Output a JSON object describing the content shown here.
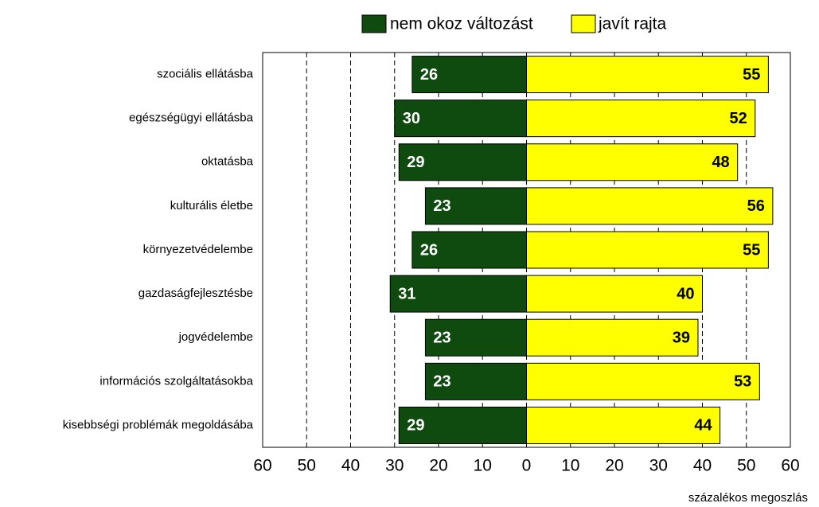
{
  "chart_data": {
    "type": "diverging_bar",
    "orientation": "horizontal",
    "categories": [
      "szociális ellátásba",
      "egészségügyi ellátásba",
      "oktatásba",
      "kulturális életbe",
      "környezetvédelembe",
      "gazdaságfejlesztésbe",
      "jogvédelembe",
      "információs szolgáltatásokba",
      "kisebbségi problémák megoldásába"
    ],
    "series": [
      {
        "name": "nem okoz változást",
        "color": "#0f4a0f",
        "values": [
          -26,
          -30,
          -29,
          -23,
          -26,
          -31,
          -23,
          -23,
          -29
        ],
        "value_labels": [
          "26",
          "30",
          "29",
          "23",
          "26",
          "31",
          "23",
          "23",
          "29"
        ],
        "label_color": "#ffffff"
      },
      {
        "name": "javít rajta",
        "color": "#ffff00",
        "values": [
          55,
          52,
          48,
          56,
          55,
          40,
          39,
          53,
          44
        ],
        "label_color": "#000000"
      }
    ],
    "xlim": [
      -60,
      60
    ],
    "xticks": [
      {
        "value": -60,
        "label": "60"
      },
      {
        "value": -50,
        "label": "50"
      },
      {
        "value": -40,
        "label": "40"
      },
      {
        "value": -30,
        "label": "30"
      },
      {
        "value": -20,
        "label": "20"
      },
      {
        "value": -10,
        "label": "10"
      },
      0,
      10,
      20,
      30,
      40,
      50,
      60
    ],
    "xlabel": "százalékos megoszlás",
    "grid": true,
    "legend": "top"
  }
}
